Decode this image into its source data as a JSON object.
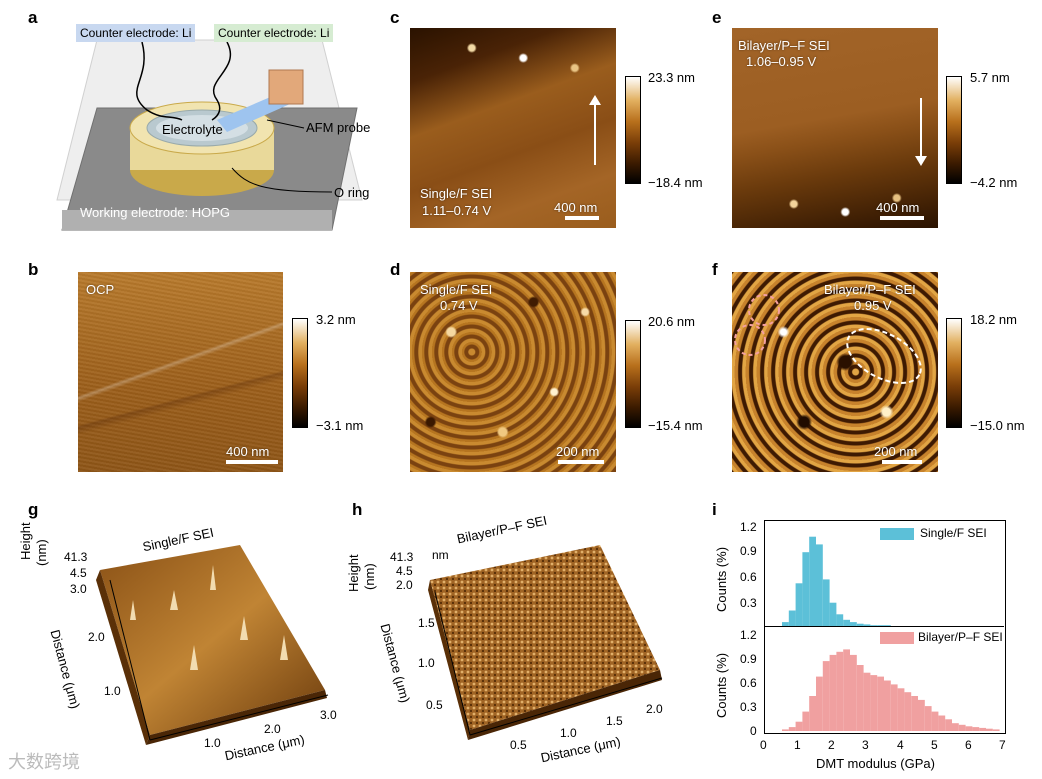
{
  "panel_letters": {
    "a": "a",
    "b": "b",
    "c": "c",
    "d": "d",
    "e": "e",
    "f": "f",
    "g": "g",
    "h": "h",
    "i": "i"
  },
  "panel_a": {
    "counter_left": "Counter electrode: Li",
    "counter_right": "Counter electrode: Li",
    "electrolyte": "Electrolyte",
    "afm_probe": "AFM probe",
    "o_ring": "O ring",
    "working": "Working electrode: HOPG"
  },
  "panel_b": {
    "label": "OCP",
    "scalebar": "400 nm",
    "cb_max": "3.2 nm",
    "cb_min": "−3.1 nm"
  },
  "panel_c": {
    "label_line1": "Single/F SEI",
    "label_line2": "1.11–0.74 V",
    "scalebar": "400 nm",
    "cb_max": "23.3 nm",
    "cb_min": "−18.4 nm"
  },
  "panel_d": {
    "label_line1": "Single/F SEI",
    "label_line2": "0.74 V",
    "scalebar": "200 nm",
    "cb_max": "20.6 nm",
    "cb_min": "−15.4 nm"
  },
  "panel_e": {
    "label_line1": "Bilayer/P–F SEI",
    "label_line2": "1.06–0.95 V",
    "scalebar": "400 nm",
    "cb_max": "5.7 nm",
    "cb_min": "−4.2 nm"
  },
  "panel_f": {
    "label_line1": "Bilayer/P–F SEI",
    "label_line2": "0.95 V",
    "scalebar": "200 nm",
    "cb_max": "18.2 nm",
    "cb_min": "−15.0 nm"
  },
  "panel_g": {
    "title": "Single/F SEI",
    "height_label": "Height",
    "height_unit": "(nm)",
    "z_ticks": [
      "41.3",
      "4.5",
      "3.0"
    ],
    "y_axis_label": "Distance (μm)",
    "y_ticks": [
      "2.0",
      "1.0"
    ],
    "x_axis_label": "Distance (μm)",
    "x_ticks": [
      "1.0",
      "2.0",
      "3.0"
    ]
  },
  "panel_h": {
    "title": "Bilayer/P–F SEI",
    "height_label": "Height",
    "height_unit": "(nm)",
    "nm_label": "nm",
    "z_ticks": [
      "41.3",
      "4.5",
      "2.0"
    ],
    "y_axis_label": "Distance (μm)",
    "y_ticks": [
      "1.5",
      "1.0",
      "0.5"
    ],
    "x_axis_label": "Distance (μm)",
    "x_ticks": [
      "0.5",
      "1.0",
      "1.5",
      "2.0"
    ]
  },
  "panel_i": {
    "top_legend": "Single/F SEI",
    "bottom_legend": "Bilayer/P–F SEI",
    "ylabel": "Counts (%)",
    "xlabel": "DMT modulus (GPa)",
    "top_yticks": [
      "1.2",
      "0.9",
      "0.6",
      "0.3"
    ],
    "bottom_yticks": [
      "1.2",
      "0.9",
      "0.6",
      "0.3",
      "0"
    ],
    "xticks": [
      "0",
      "1",
      "2",
      "3",
      "4",
      "5",
      "6",
      "7"
    ]
  },
  "watermark": "大数跨境",
  "colors": {
    "single": "#5cc0d8",
    "bilayer": "#f0a0a0",
    "afm_low": "#000000",
    "afm_high": "#ffffff"
  },
  "chart_data": {
    "type": "bar",
    "xlabel": "DMT modulus (GPa)",
    "ylabel": "Counts (%)",
    "xlim": [
      0,
      7
    ],
    "ylim": [
      0,
      1.3
    ],
    "x": [
      0.6,
      0.8,
      1.0,
      1.2,
      1.4,
      1.6,
      1.8,
      2.0,
      2.2,
      2.4,
      2.6,
      2.8,
      3.0,
      3.2,
      3.4,
      3.6,
      3.8,
      4.0,
      4.2,
      4.4,
      4.6,
      4.8,
      5.0,
      5.2,
      5.4,
      5.6,
      5.8,
      6.0,
      6.2,
      6.4,
      6.6,
      6.8
    ],
    "series": [
      {
        "name": "Single/F SEI",
        "values": [
          0.05,
          0.2,
          0.55,
          0.95,
          1.15,
          1.05,
          0.6,
          0.3,
          0.15,
          0.08,
          0.05,
          0.03,
          0.02,
          0.01,
          0.01,
          0.01,
          0,
          0,
          0,
          0,
          0,
          0,
          0,
          0,
          0,
          0,
          0,
          0,
          0,
          0,
          0,
          0
        ]
      },
      {
        "name": "Bilayer/P–F SEI",
        "values": [
          0.02,
          0.05,
          0.12,
          0.25,
          0.45,
          0.7,
          0.9,
          0.98,
          1.02,
          1.05,
          0.98,
          0.85,
          0.75,
          0.72,
          0.7,
          0.65,
          0.6,
          0.55,
          0.5,
          0.45,
          0.4,
          0.32,
          0.25,
          0.2,
          0.15,
          0.1,
          0.08,
          0.06,
          0.05,
          0.04,
          0.03,
          0.02
        ]
      }
    ]
  }
}
